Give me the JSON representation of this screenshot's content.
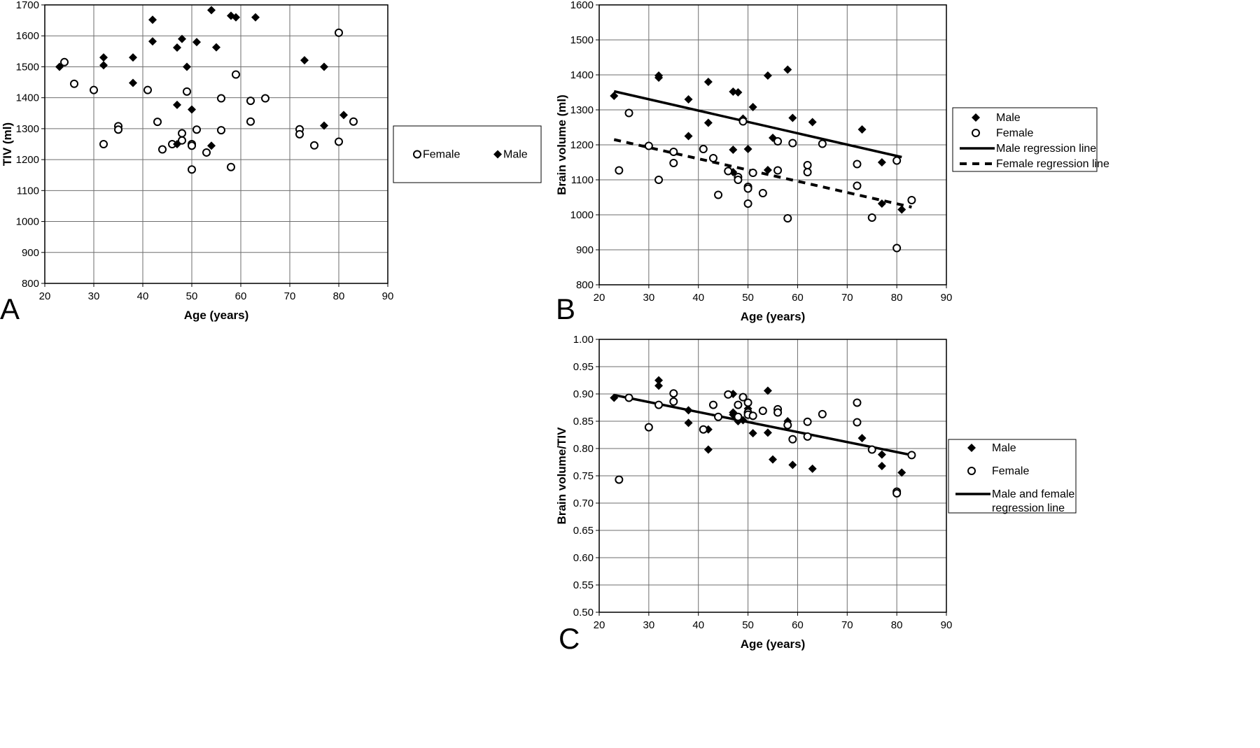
{
  "chart_data": [
    {
      "panel": "A",
      "type": "scatter",
      "title": "",
      "xlabel": "Age (years)",
      "ylabel": "TIV (ml)",
      "xlim": [
        20,
        90
      ],
      "ylim": [
        800,
        1700
      ],
      "xticks": [
        20,
        30,
        40,
        50,
        60,
        70,
        80,
        90
      ],
      "yticks": [
        800,
        900,
        1000,
        1100,
        1200,
        1300,
        1400,
        1500,
        1600,
        1700
      ],
      "grid": true,
      "legend_position": "right",
      "series": [
        {
          "name": "Female",
          "marker": "circle",
          "points": [
            [
              24,
              1515
            ],
            [
              26,
              1445
            ],
            [
              30,
              1425
            ],
            [
              32,
              1250
            ],
            [
              35,
              1308
            ],
            [
              35,
              1297
            ],
            [
              41,
              1425
            ],
            [
              43,
              1322
            ],
            [
              44,
              1233
            ],
            [
              46,
              1250
            ],
            [
              48,
              1285
            ],
            [
              48,
              1262
            ],
            [
              49,
              1420
            ],
            [
              50,
              1250
            ],
            [
              50,
              1245
            ],
            [
              50,
              1168
            ],
            [
              51,
              1297
            ],
            [
              53,
              1223
            ],
            [
              56,
              1398
            ],
            [
              56,
              1295
            ],
            [
              58,
              1176
            ],
            [
              59,
              1475
            ],
            [
              62,
              1390
            ],
            [
              62,
              1323
            ],
            [
              65,
              1398
            ],
            [
              72,
              1298
            ],
            [
              72,
              1282
            ],
            [
              75,
              1246
            ],
            [
              80,
              1610
            ],
            [
              80,
              1258
            ],
            [
              83,
              1323
            ]
          ]
        },
        {
          "name": "Male",
          "marker": "diamond",
          "points": [
            [
              23,
              1500
            ],
            [
              32,
              1530
            ],
            [
              32,
              1505
            ],
            [
              38,
              1530
            ],
            [
              38,
              1448
            ],
            [
              42,
              1652
            ],
            [
              42,
              1582
            ],
            [
              47,
              1562
            ],
            [
              47,
              1377
            ],
            [
              47,
              1250
            ],
            [
              48,
              1590
            ],
            [
              49,
              1500
            ],
            [
              50,
              1362
            ],
            [
              51,
              1580
            ],
            [
              54,
              1683
            ],
            [
              54,
              1245
            ],
            [
              55,
              1563
            ],
            [
              58,
              1665
            ],
            [
              59,
              1660
            ],
            [
              63,
              1660
            ],
            [
              73,
              1521
            ],
            [
              77,
              1500
            ],
            [
              77,
              1310
            ],
            [
              81,
              1344
            ]
          ]
        }
      ]
    },
    {
      "panel": "B",
      "type": "scatter",
      "title": "",
      "xlabel": "Age (years)",
      "ylabel": "Brain volume (ml)",
      "xlim": [
        20,
        90
      ],
      "ylim": [
        800,
        1600
      ],
      "xticks": [
        20,
        30,
        40,
        50,
        60,
        70,
        80,
        90
      ],
      "yticks": [
        800,
        900,
        1000,
        1100,
        1200,
        1300,
        1400,
        1500,
        1600
      ],
      "grid": true,
      "legend_position": "right",
      "series": [
        {
          "name": "Male",
          "marker": "diamond",
          "points": [
            [
              23,
              1340
            ],
            [
              32,
              1398
            ],
            [
              32,
              1392
            ],
            [
              38,
              1330
            ],
            [
              38,
              1225
            ],
            [
              42,
              1380
            ],
            [
              42,
              1263
            ],
            [
              47,
              1352
            ],
            [
              47,
              1186
            ],
            [
              47,
              1122
            ],
            [
              48,
              1350
            ],
            [
              49,
              1275
            ],
            [
              50,
              1188
            ],
            [
              51,
              1308
            ],
            [
              54,
              1398
            ],
            [
              54,
              1128
            ],
            [
              55,
              1220
            ],
            [
              58,
              1415
            ],
            [
              59,
              1277
            ],
            [
              63,
              1265
            ],
            [
              73,
              1244
            ],
            [
              77,
              1150
            ],
            [
              77,
              1032
            ],
            [
              81,
              1015
            ]
          ]
        },
        {
          "name": "Female",
          "marker": "circle",
          "points": [
            [
              24,
              1127
            ],
            [
              26,
              1291
            ],
            [
              30,
              1197
            ],
            [
              32,
              1100
            ],
            [
              35,
              1180
            ],
            [
              35,
              1148
            ],
            [
              41,
              1188
            ],
            [
              43,
              1162
            ],
            [
              44,
              1057
            ],
            [
              46,
              1125
            ],
            [
              48,
              1108
            ],
            [
              48,
              1100
            ],
            [
              49,
              1267
            ],
            [
              50,
              1080
            ],
            [
              50,
              1075
            ],
            [
              50,
              1032
            ],
            [
              51,
              1120
            ],
            [
              53,
              1062
            ],
            [
              56,
              1210
            ],
            [
              56,
              1127
            ],
            [
              58,
              990
            ],
            [
              59,
              1205
            ],
            [
              62,
              1142
            ],
            [
              62,
              1122
            ],
            [
              65,
              1203
            ],
            [
              72,
              1145
            ],
            [
              72,
              1083
            ],
            [
              75,
              992
            ],
            [
              80,
              1155
            ],
            [
              80,
              905
            ],
            [
              83,
              1042
            ]
          ]
        },
        {
          "name": "Male regression line",
          "type": "line",
          "style": "solid",
          "points": [
            [
              23,
              1353
            ],
            [
              81,
              1165
            ]
          ]
        },
        {
          "name": "Female regression line",
          "type": "line",
          "style": "dashed",
          "points": [
            [
              23,
              1215
            ],
            [
              83,
              1022
            ]
          ]
        }
      ]
    },
    {
      "panel": "C",
      "type": "scatter",
      "title": "",
      "xlabel": "Age (years)",
      "ylabel": "Brain volume/TIV",
      "xlim": [
        20,
        90
      ],
      "ylim": [
        0.5,
        1.0
      ],
      "xticks": [
        "20",
        "30",
        "40",
        "50",
        "60",
        "70",
        "80",
        "90"
      ],
      "yticks": [
        "0.50",
        "0.55",
        "0.60",
        "0.65",
        "0.70",
        "0.75",
        "0.80",
        "0.85",
        "0.90",
        "0.95",
        "1.00"
      ],
      "grid": true,
      "legend_position": "right",
      "series": [
        {
          "name": "Male",
          "marker": "diamond",
          "points": [
            [
              23,
              0.893
            ],
            [
              32,
              0.925
            ],
            [
              32,
              0.915
            ],
            [
              38,
              0.87
            ],
            [
              38,
              0.847
            ],
            [
              42,
              0.835
            ],
            [
              42,
              0.798
            ],
            [
              47,
              0.9
            ],
            [
              47,
              0.866
            ],
            [
              47,
              0.862
            ],
            [
              48,
              0.85
            ],
            [
              49,
              0.852
            ],
            [
              50,
              0.873
            ],
            [
              51,
              0.828
            ],
            [
              54,
              0.906
            ],
            [
              54,
              0.829
            ],
            [
              55,
              0.78
            ],
            [
              58,
              0.85
            ],
            [
              59,
              0.77
            ],
            [
              63,
              0.763
            ],
            [
              73,
              0.819
            ],
            [
              77,
              0.789
            ],
            [
              77,
              0.768
            ],
            [
              81,
              0.756
            ]
          ]
        },
        {
          "name": "Female",
          "marker": "circle",
          "points": [
            [
              24,
              0.743
            ],
            [
              26,
              0.893
            ],
            [
              30,
              0.839
            ],
            [
              32,
              0.88
            ],
            [
              35,
              0.901
            ],
            [
              35,
              0.886
            ],
            [
              41,
              0.835
            ],
            [
              43,
              0.88
            ],
            [
              44,
              0.858
            ],
            [
              46,
              0.899
            ],
            [
              48,
              0.88
            ],
            [
              48,
              0.858
            ],
            [
              49,
              0.894
            ],
            [
              50,
              0.884
            ],
            [
              50,
              0.866
            ],
            [
              50,
              0.862
            ],
            [
              51,
              0.86
            ],
            [
              53,
              0.869
            ],
            [
              56,
              0.872
            ],
            [
              56,
              0.866
            ],
            [
              58,
              0.843
            ],
            [
              59,
              0.817
            ],
            [
              62,
              0.849
            ],
            [
              62,
              0.822
            ],
            [
              65,
              0.863
            ],
            [
              72,
              0.884
            ],
            [
              72,
              0.848
            ],
            [
              75,
              0.798
            ],
            [
              80,
              0.721
            ],
            [
              80,
              0.718
            ],
            [
              83,
              0.788
            ]
          ]
        },
        {
          "name": "Male and female regression line",
          "type": "line",
          "style": "solid",
          "points": [
            [
              23,
              0.898
            ],
            [
              83,
              0.788
            ]
          ]
        }
      ]
    }
  ],
  "legends": {
    "A": [
      {
        "label": "Female",
        "marker": "circle"
      },
      {
        "label": "Male",
        "marker": "diamond"
      }
    ],
    "B": [
      {
        "label": "Male",
        "marker": "diamond"
      },
      {
        "label": "Female",
        "marker": "circle"
      },
      {
        "label": "Male regression line",
        "marker": "solid-line"
      },
      {
        "label": "Female regression line",
        "marker": "dashed-line"
      }
    ],
    "C": [
      {
        "label": "Male",
        "marker": "diamond"
      },
      {
        "label": "Female",
        "marker": "circle"
      },
      {
        "label": "Male and female",
        "label2": "regression line",
        "marker": "solid-line"
      }
    ]
  },
  "colors": {
    "ink": "#000000",
    "grid": "#6e6e6e",
    "background": "#ffffff"
  }
}
